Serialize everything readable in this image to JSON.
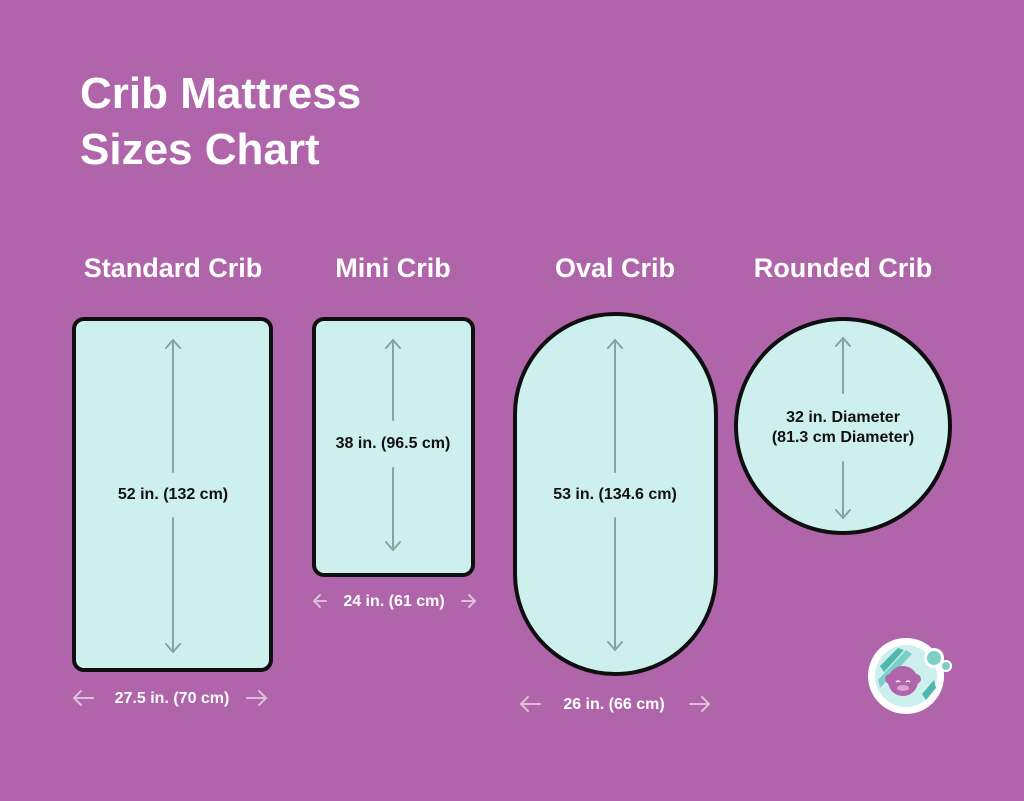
{
  "title": {
    "line1": "Crib Mattress",
    "line2": "Sizes Chart"
  },
  "cribs": [
    {
      "name": "Standard Crib",
      "length_label": "52 in. (132 cm)",
      "width_label": "27.5 in. (70 cm)"
    },
    {
      "name": "Mini Crib",
      "length_label": "38 in. (96.5 cm)",
      "width_label": "24 in. (61 cm)"
    },
    {
      "name": "Oval Crib",
      "length_label": "53 in. (134.6 cm)",
      "width_label": "26 in. (66 cm)"
    },
    {
      "name": "Rounded Crib",
      "diameter_line1": "32 in. Diameter",
      "diameter_line2": "(81.3 cm Diameter)"
    }
  ],
  "colors": {
    "background": "#b065ab",
    "mattress_fill": "#cdf0ee",
    "outline": "#0f0f0f",
    "arrow": "#8aa3a1",
    "width_arrow": "#dcc0d9"
  },
  "logo": {
    "icon": "baby-sleeping-logo-icon"
  }
}
